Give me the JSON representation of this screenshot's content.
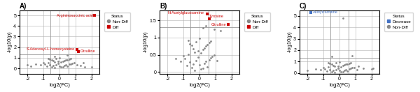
{
  "chart_data": [
    {
      "type": "scatter",
      "title": "A)",
      "x_label": "log2(FC)",
      "y_label": "-log10(p)",
      "xlim": [
        -2.5,
        2.5
      ],
      "ylim": [
        -0.5,
        5.5
      ],
      "xticks": [
        -2,
        -1,
        0,
        1,
        2
      ],
      "yticks": [
        0,
        1,
        2,
        3,
        4,
        5
      ],
      "grid": true,
      "legend": "upper left",
      "legend_title": "Status",
      "hlines": [
        1.3
      ],
      "vlines": [
        -0.585,
        0.585
      ],
      "series": [
        {
          "name": "Non-Diff",
          "color": "#888888",
          "marker": "circle",
          "x": [
            -0.3,
            0.1,
            -0.5,
            0.2,
            -0.8,
            0.5,
            -0.4,
            0.0,
            -0.6,
            0.3,
            -0.2,
            0.4,
            -0.9,
            0.6,
            -0.1,
            0.7,
            -1.0,
            0.8,
            -0.7,
            0.9,
            -0.3,
            -0.1,
            0.1,
            0.2,
            -0.4,
            0.3,
            -0.5,
            0.4,
            -0.6,
            0.5,
            -0.2,
            0.6,
            -0.7,
            0.7,
            0.0,
            -1.2,
            1.1,
            -1.5,
            1.3,
            -1.8,
            1.6,
            2.0,
            -0.3,
            0.5,
            1.5,
            -2.0
          ],
          "values": [
            0.05,
            0.1,
            0.15,
            0.12,
            0.2,
            0.18,
            0.25,
            0.22,
            0.3,
            0.28,
            0.35,
            0.32,
            0.4,
            0.38,
            0.45,
            0.42,
            0.5,
            0.48,
            0.55,
            0.52,
            0.6,
            0.65,
            0.6,
            0.68,
            0.7,
            0.72,
            0.8,
            0.78,
            0.85,
            0.82,
            0.9,
            0.88,
            0.95,
            0.92,
            1.0,
            0.3,
            0.35,
            0.4,
            0.25,
            0.2,
            0.15,
            0.1,
            1.15,
            1.25,
            0.5,
            0.3
          ]
        },
        {
          "name": "Diff",
          "color": "#cc0000",
          "marker": "square",
          "x": [
            1.2,
            1.1,
            2.2
          ],
          "values": [
            1.6,
            1.8,
            5.0
          ]
        }
      ],
      "annotations": [
        {
          "x": 1.2,
          "y": 1.6,
          "text": "Citrulline",
          "color": "#cc0000"
        },
        {
          "x": 1.1,
          "y": 1.8,
          "text": "S-Adenosyl-L-homocysteine",
          "color": "#cc0000"
        },
        {
          "x": 2.2,
          "y": 5.0,
          "text": "Argininosuccinic acid",
          "color": "#cc0000"
        }
      ]
    },
    {
      "type": "scatter",
      "title": "B)",
      "x_label": "log2(FC)",
      "y_label": "-log10(p)",
      "xlim": [
        -2.5,
        2.5
      ],
      "ylim": [
        -0.05,
        1.8
      ],
      "xticks": [
        -2,
        -1,
        0,
        1,
        2
      ],
      "yticks": [
        0,
        0.5,
        1,
        1.5
      ],
      "grid": true,
      "legend": "upper left",
      "legend_title": "Status",
      "hlines": [
        1.3
      ],
      "vlines": [
        -0.585,
        0.585
      ],
      "series": [
        {
          "name": "Non-Diff",
          "color": "#888888",
          "marker": "circle",
          "x": [
            -0.3,
            0.1,
            -0.5,
            0.2,
            -0.8,
            0.5,
            -0.4,
            0.0,
            -0.6,
            0.3,
            -0.2,
            0.4,
            -0.9,
            0.6,
            -0.1,
            0.7,
            -1.0,
            0.8,
            -0.7,
            0.9,
            -0.3,
            -0.1,
            0.1,
            0.2,
            -0.4,
            0.3,
            -0.5,
            0.4,
            -0.6,
            0.5,
            -0.2,
            0.6,
            -0.7,
            0.7,
            0.0,
            -1.2,
            1.1,
            -1.5,
            1.3,
            0.9,
            0.4,
            0.2
          ],
          "values": [
            0.05,
            0.08,
            0.12,
            0.1,
            0.18,
            0.15,
            0.22,
            0.2,
            0.28,
            0.25,
            0.32,
            0.3,
            0.38,
            0.35,
            0.42,
            0.4,
            0.48,
            0.45,
            0.52,
            0.5,
            0.58,
            0.62,
            0.55,
            0.65,
            0.68,
            0.7,
            0.78,
            0.75,
            0.82,
            0.8,
            0.88,
            0.85,
            0.92,
            0.9,
            0.98,
            0.3,
            0.32,
            0.38,
            1.2,
            1.25,
            1.35,
            1.28
          ]
        },
        {
          "name": "Diff",
          "color": "#cc0000",
          "marker": "square",
          "x": [
            1.8,
            0.6,
            0.5
          ],
          "values": [
            1.38,
            1.55,
            1.68
          ]
        }
      ],
      "annotations": [
        {
          "x": 1.8,
          "y": 1.38,
          "text": "Citrulline",
          "color": "#cc0000"
        },
        {
          "x": 0.5,
          "y": 1.62,
          "text": "Tyrosine",
          "color": "#cc0000"
        },
        {
          "x": 0.4,
          "y": 1.72,
          "text": "N-Acetylglucosamine",
          "color": "#cc0000"
        }
      ]
    },
    {
      "type": "scatter",
      "title": "C)",
      "x_label": "log2(FC)",
      "y_label": "-log10(p)",
      "xlim": [
        -2.5,
        2.5
      ],
      "ylim": [
        -0.05,
        5.5
      ],
      "xticks": [
        -2,
        -1,
        0,
        1,
        2
      ],
      "yticks": [
        0,
        1,
        2,
        3,
        4,
        5
      ],
      "grid": true,
      "legend": "upper left",
      "legend_title": "Status",
      "hlines": [
        1.3
      ],
      "vlines": [
        -0.585,
        0.585
      ],
      "series": [
        {
          "name": "Decrease",
          "color": "#4472c4",
          "marker": "square",
          "x": [
            -1.8
          ],
          "values": [
            5.3
          ]
        },
        {
          "name": "Non-Diff",
          "color": "#888888",
          "marker": "circle",
          "x": [
            -0.3,
            0.1,
            -0.5,
            0.2,
            -0.8,
            0.5,
            -0.4,
            0.0,
            -0.6,
            0.3,
            -0.2,
            0.4,
            -0.9,
            0.6,
            -0.1,
            0.7,
            -1.0,
            0.8,
            -0.7,
            0.9,
            -0.3,
            -0.1,
            0.1,
            0.2,
            -0.4,
            0.3,
            -0.5,
            0.4,
            -0.6,
            0.5,
            -0.2,
            0.6,
            -0.7,
            0.7,
            0.0,
            -1.2,
            1.1,
            -1.5,
            0.2,
            1.5,
            2.0,
            -0.5,
            0.8,
            1.2,
            2.1,
            -2.0
          ],
          "values": [
            0.05,
            0.08,
            0.12,
            0.1,
            0.18,
            0.15,
            0.22,
            0.2,
            0.28,
            0.25,
            0.32,
            0.3,
            0.38,
            0.35,
            0.42,
            0.4,
            0.48,
            0.45,
            0.52,
            0.5,
            0.58,
            0.62,
            0.55,
            0.65,
            0.68,
            0.7,
            0.78,
            0.75,
            0.82,
            0.8,
            0.88,
            0.85,
            0.92,
            0.9,
            0.98,
            0.3,
            0.32,
            0.38,
            4.8,
            0.4,
            0.35,
            1.45,
            1.5,
            0.6,
            0.4,
            0.25
          ]
        }
      ],
      "annotations": [
        {
          "x": -1.8,
          "y": 5.3,
          "text": "Acetylcarnitine",
          "color": "#4472c4"
        }
      ]
    }
  ]
}
